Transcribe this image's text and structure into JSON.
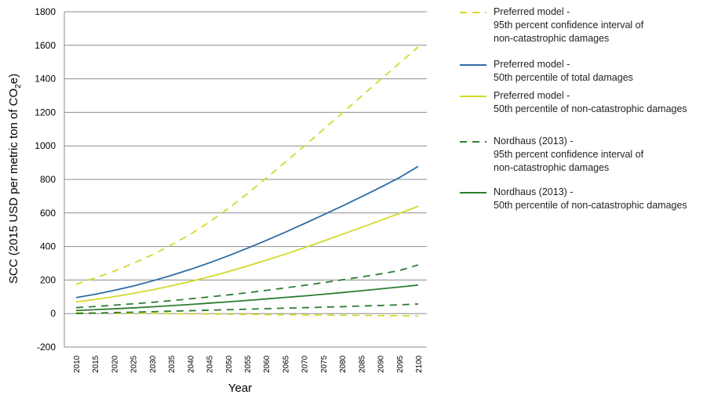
{
  "chart_data": {
    "type": "line",
    "title": "",
    "xlabel": "Year",
    "ylabel_main": "SCC (2015 USD per metric ton of CO",
    "ylabel_sub": "2",
    "ylabel_tail": "e)",
    "x": [
      2010,
      2015,
      2020,
      2025,
      2030,
      2035,
      2040,
      2045,
      2050,
      2055,
      2060,
      2065,
      2070,
      2075,
      2080,
      2085,
      2090,
      2095,
      2100
    ],
    "xlim": [
      2010,
      2100
    ],
    "ylim": [
      -200,
      1800
    ],
    "yticks": [
      -200,
      0,
      200,
      400,
      600,
      800,
      1000,
      1200,
      1400,
      1600,
      1800
    ],
    "grid": "horizontal",
    "legend_position": "right",
    "series": [
      {
        "key": "pref_95_upper",
        "color": "#d4d92a",
        "dashed": true,
        "values": [
          175,
          212,
          253,
          299,
          350,
          408,
          472,
          545,
          626,
          714,
          807,
          902,
          999,
          1097,
          1196,
          1295,
          1394,
          1492,
          1590
        ]
      },
      {
        "key": "pref_95_lower",
        "color": "#d4d92a",
        "dashed": true,
        "values": [
          5,
          4,
          2,
          1,
          0,
          -1,
          -2,
          -3,
          -4,
          -5,
          -6,
          -7,
          -8,
          -9,
          -10,
          -11,
          -12,
          -13,
          -14
        ]
      },
      {
        "key": "pref_50_total",
        "color": "#2e6ca4",
        "dashed": false,
        "values": [
          95,
          115,
          138,
          164,
          194,
          227,
          263,
          302,
          344,
          389,
          436,
          485,
          536,
          588,
          641,
          696,
          752,
          810,
          878
        ]
      },
      {
        "key": "pref_50_noncat",
        "color": "#d4d92a",
        "dashed": false,
        "values": [
          70,
          84,
          101,
          120,
          141,
          165,
          191,
          219,
          250,
          283,
          318,
          354,
          392,
          432,
          472,
          513,
          555,
          597,
          640
        ]
      },
      {
        "key": "nord_95_upper",
        "color": "#2e7d32",
        "dashed": true,
        "values": [
          35,
          42,
          50,
          58,
          67,
          77,
          88,
          99,
          111,
          124,
          138,
          153,
          168,
          184,
          201,
          218,
          236,
          256,
          290
        ]
      },
      {
        "key": "nord_95_lower",
        "color": "#2e7d32",
        "dashed": true,
        "values": [
          0,
          3,
          6,
          8,
          11,
          14,
          17,
          20,
          23,
          26,
          29,
          32,
          35,
          38,
          41,
          45,
          48,
          52,
          57
        ]
      },
      {
        "key": "nord_50",
        "color": "#2e7d32",
        "dashed": false,
        "values": [
          18,
          23,
          28,
          34,
          40,
          47,
          54,
          62,
          70,
          78,
          87,
          96,
          105,
          115,
          125,
          136,
          147,
          158,
          170
        ]
      }
    ],
    "legend": [
      {
        "title": "Preferred model -",
        "desc": "95th percent confidence interval of",
        "desc2": "non-catastrophic damages",
        "color": "#d4d92a",
        "dashed": true
      },
      {
        "title": "Preferred model -",
        "desc": "50th percentile of total damages",
        "desc2": "",
        "color": "#2e6ca4",
        "dashed": false
      },
      {
        "title": "Preferred model -",
        "desc": "50th percentile of non-catastrophic damages",
        "desc2": "",
        "color": "#d4d92a",
        "dashed": false
      },
      {
        "title": "Nordhaus (2013) -",
        "desc": "95th percent confidence interval of",
        "desc2": "non-catastrophic damages",
        "color": "#2e7d32",
        "dashed": true
      },
      {
        "title": "Nordhaus (2013) -",
        "desc": "50th percentile of non-catastrophic damages",
        "desc2": "",
        "color": "#2e7d32",
        "dashed": false
      }
    ]
  }
}
